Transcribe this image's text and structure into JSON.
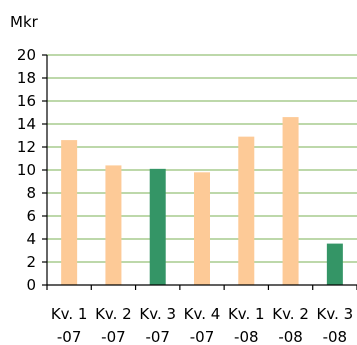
{
  "chart_data": {
    "type": "bar",
    "title": "",
    "xlabel": "",
    "ylabel": "",
    "unit_label": "Mkr",
    "categories": [
      [
        "Kv. 1",
        "-07"
      ],
      [
        "Kv. 2",
        "-07"
      ],
      [
        "Kv. 3",
        "-07"
      ],
      [
        "Kv. 4",
        "-07"
      ],
      [
        "Kv. 1",
        "-08"
      ],
      [
        "Kv. 2",
        "-08"
      ],
      [
        "Kv. 3",
        "-08"
      ]
    ],
    "values": [
      12.6,
      10.4,
      10.1,
      9.8,
      12.9,
      14.6,
      3.6
    ],
    "highlight": [
      false,
      false,
      true,
      false,
      false,
      false,
      true
    ],
    "ylim": [
      0,
      20
    ],
    "yticks": [
      0,
      2,
      4,
      6,
      8,
      10,
      12,
      14,
      16,
      18,
      20
    ],
    "grid": true,
    "colors": {
      "bar": "#fdca97",
      "highlight": "#349566",
      "grid": "#a7cc8e",
      "axis": "#000000"
    }
  }
}
